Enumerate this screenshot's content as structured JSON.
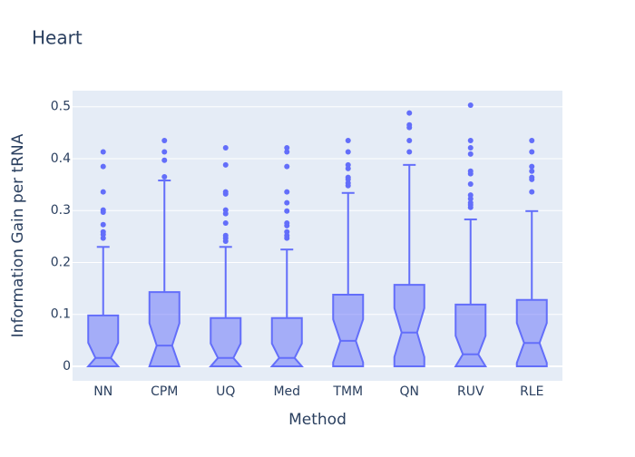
{
  "chart_data": {
    "type": "box",
    "title": "Heart",
    "x_label": "Method",
    "y_label": "Information Gain per tRNA",
    "categories": [
      "NN",
      "CPM",
      "UQ",
      "Med",
      "TMM",
      "QN",
      "RUV",
      "RLE"
    ],
    "color": "#636efa",
    "lower_fence": [
      0,
      0,
      0,
      0,
      0,
      0,
      0,
      0
    ],
    "q1": [
      0,
      0,
      0,
      0,
      0,
      0,
      0,
      0
    ],
    "median": [
      0.016,
      0.04,
      0.016,
      0.016,
      0.049,
      0.065,
      0.023,
      0.045
    ],
    "q3": [
      0.098,
      0.143,
      0.093,
      0.093,
      0.138,
      0.157,
      0.119,
      0.128
    ],
    "upper_fence": [
      0.23,
      0.358,
      0.23,
      0.225,
      0.334,
      0.388,
      0.283,
      0.299
    ],
    "outliers": [
      [
        0.413,
        0.385,
        0.336,
        0.301,
        0.297,
        0.273,
        0.259,
        0.254,
        0.247
      ],
      [
        0.435,
        0.413,
        0.397,
        0.365
      ],
      [
        0.421,
        0.388,
        0.336,
        0.332,
        0.301,
        0.294,
        0.276,
        0.252,
        0.247,
        0.241
      ],
      [
        0.421,
        0.413,
        0.385,
        0.336,
        0.315,
        0.299,
        0.276,
        0.271,
        0.259,
        0.252,
        0.247
      ],
      [
        0.435,
        0.413,
        0.388,
        0.381,
        0.364,
        0.36,
        0.353,
        0.348
      ],
      [
        0.488,
        0.465,
        0.46,
        0.435,
        0.413
      ],
      [
        0.503,
        0.435,
        0.421,
        0.409,
        0.376,
        0.371,
        0.351,
        0.33,
        0.323,
        0.315,
        0.311,
        0.306
      ],
      [
        0.435,
        0.413,
        0.385,
        0.376,
        0.364,
        0.36,
        0.336
      ]
    ],
    "ylim": [
      -0.028,
      0.531
    ],
    "yticks": [
      0,
      0.1,
      0.2,
      0.3,
      0.4,
      0.5
    ],
    "grid": true
  }
}
